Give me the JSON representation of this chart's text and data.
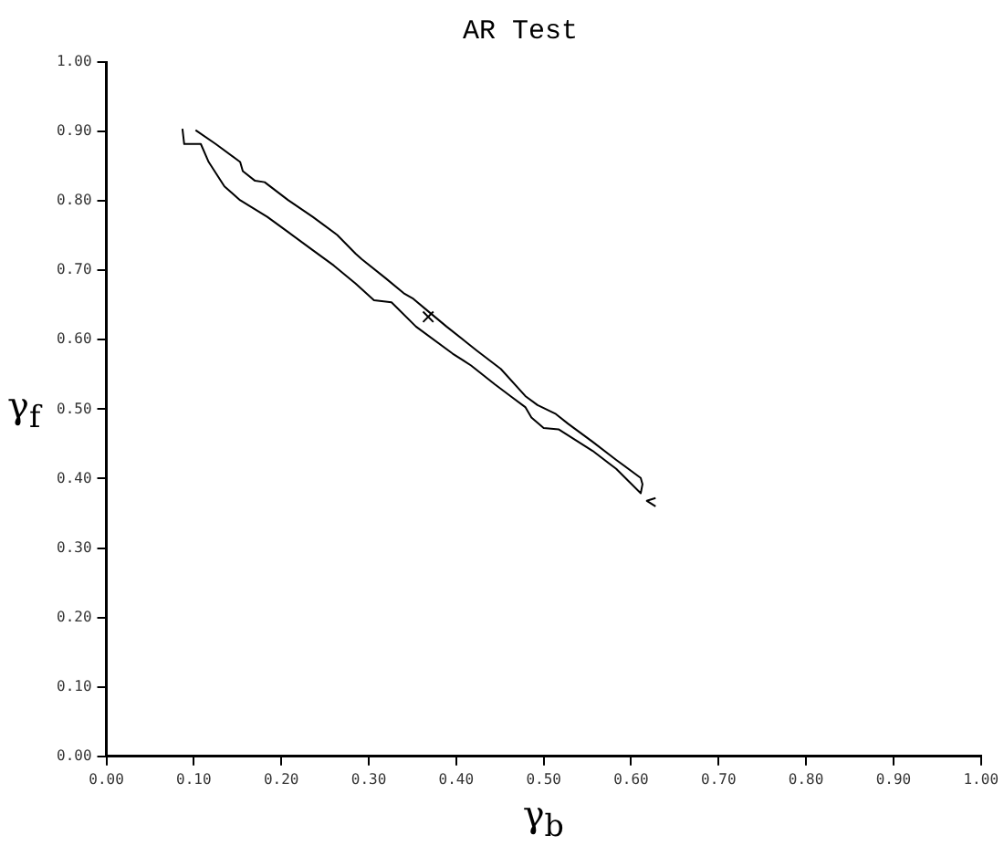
{
  "chart_data": {
    "type": "line",
    "title": "AR Test",
    "xlabel": "γ$_{b}$",
    "ylabel": "γ$_{f}$",
    "xlim": [
      0,
      1
    ],
    "ylim": [
      0,
      1
    ],
    "xticks": [
      {
        "value": 0,
        "label": "0.00"
      },
      {
        "value": 0.1,
        "label": "0.10"
      },
      {
        "value": 0.2,
        "label": "0.20"
      },
      {
        "value": 0.3,
        "label": "0.30"
      },
      {
        "value": 0.4,
        "label": "0.40"
      },
      {
        "value": 0.5,
        "label": "0.50"
      },
      {
        "value": 0.6,
        "label": "0.60"
      },
      {
        "value": 0.7,
        "label": "0.70"
      },
      {
        "value": 0.8,
        "label": "0.80"
      },
      {
        "value": 0.9,
        "label": "0.90"
      },
      {
        "value": 1,
        "label": "1.00"
      }
    ],
    "yticks": [
      {
        "value": 0,
        "label": "0.00"
      },
      {
        "value": 0.1,
        "label": "0.10"
      },
      {
        "value": 0.2,
        "label": "0.20"
      },
      {
        "value": 0.3,
        "label": "0.30"
      },
      {
        "value": 0.4,
        "label": "0.40"
      },
      {
        "value": 0.5,
        "label": "0.50"
      },
      {
        "value": 0.6,
        "label": "0.60"
      },
      {
        "value": 0.7,
        "label": "0.70"
      },
      {
        "value": 0.8,
        "label": "0.80"
      },
      {
        "value": 0.9,
        "label": "0.90"
      },
      {
        "value": 1,
        "label": "1.00"
      }
    ],
    "grid": false,
    "legend": false,
    "marker": "none",
    "line_style": "solid",
    "series": [
      {
        "type": "line",
        "color": "#000000",
        "x": [
          0.087,
          0.089,
          0.108,
          0.117,
          0.135,
          0.153,
          0.184,
          0.208,
          0.236,
          0.26,
          0.285,
          0.306,
          0.326,
          0.354,
          0.396,
          0.417,
          0.444,
          0.462,
          0.479,
          0.486,
          0.5,
          0.517,
          0.556,
          0.583,
          0.611,
          0.613,
          0.611,
          0.583,
          0.556,
          0.528,
          0.514,
          0.493,
          0.479,
          0.451,
          0.424,
          0.389,
          0.368,
          0.351,
          0.34,
          0.319,
          0.292,
          0.285,
          0.264,
          0.236,
          0.208,
          0.181,
          0.17,
          0.156,
          0.153,
          0.125,
          0.102
        ],
        "values": [
          0.904,
          0.882,
          0.882,
          0.856,
          0.821,
          0.801,
          0.777,
          0.755,
          0.729,
          0.707,
          0.681,
          0.657,
          0.654,
          0.619,
          0.58,
          0.563,
          0.536,
          0.519,
          0.503,
          0.488,
          0.473,
          0.471,
          0.44,
          0.414,
          0.379,
          0.392,
          0.401,
          0.427,
          0.453,
          0.479,
          0.493,
          0.506,
          0.519,
          0.558,
          0.584,
          0.619,
          0.641,
          0.659,
          0.667,
          0.689,
          0.716,
          0.724,
          0.751,
          0.777,
          0.801,
          0.827,
          0.829,
          0.843,
          0.856,
          0.882,
          0.902
        ]
      },
      {
        "type": "line",
        "color": "#000000",
        "x": [
          0.628,
          0.618,
          0.628
        ],
        "values": [
          0.372,
          0.368,
          0.36
        ]
      },
      {
        "type": "scatter",
        "color": "#000000",
        "marker": "cross",
        "x": [
          0.368
        ],
        "values": [
          0.633
        ]
      }
    ]
  }
}
